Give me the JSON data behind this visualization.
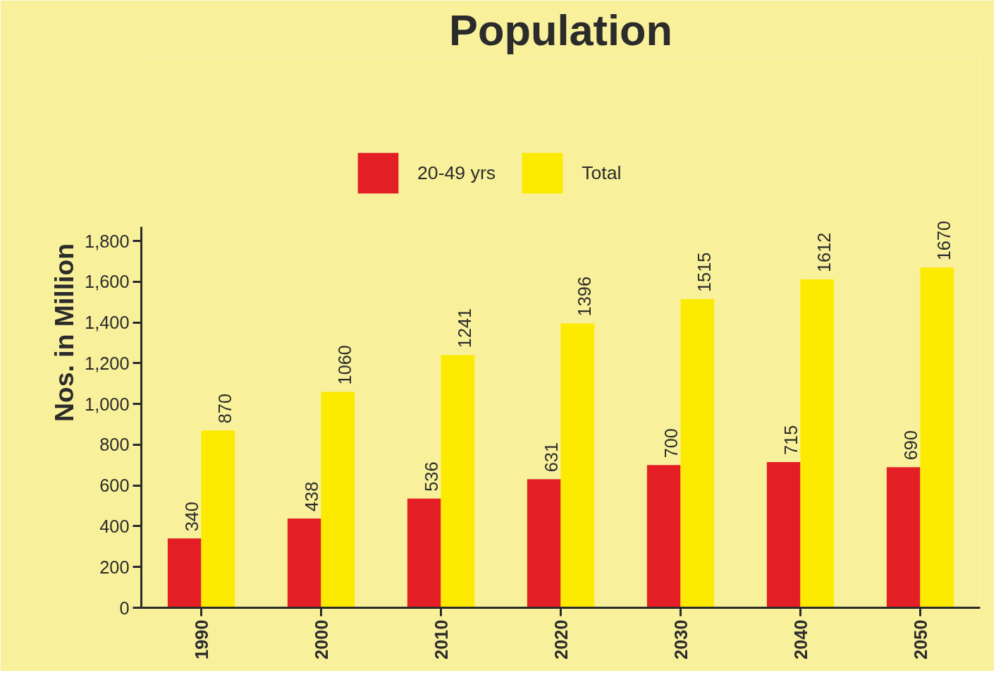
{
  "chart_data": {
    "type": "bar",
    "title": "Population",
    "ylabel": "Nos. in Million",
    "categories": [
      "1990",
      "2000",
      "2010",
      "2020",
      "2030",
      "2040",
      "2050"
    ],
    "series": [
      {
        "name": "20-49 yrs",
        "color": "#e31e24",
        "values": [
          340,
          438,
          536,
          631,
          700,
          715,
          690
        ]
      },
      {
        "name": "Total",
        "color": "#fcea00",
        "values": [
          870,
          1060,
          1241,
          1396,
          1515,
          1612,
          1670
        ]
      }
    ],
    "ylim": [
      0,
      1870
    ],
    "yticks": [
      0,
      200,
      400,
      600,
      800,
      {
        "value": 1000,
        "label": "1,000"
      },
      {
        "value": 1200,
        "label": "1,200"
      },
      {
        "value": 1400,
        "label": "1,400"
      },
      {
        "value": 1600,
        "label": "1,600"
      },
      {
        "value": 1800,
        "label": "1,800"
      }
    ],
    "data_labels": true,
    "legend": "top",
    "grid": false
  }
}
